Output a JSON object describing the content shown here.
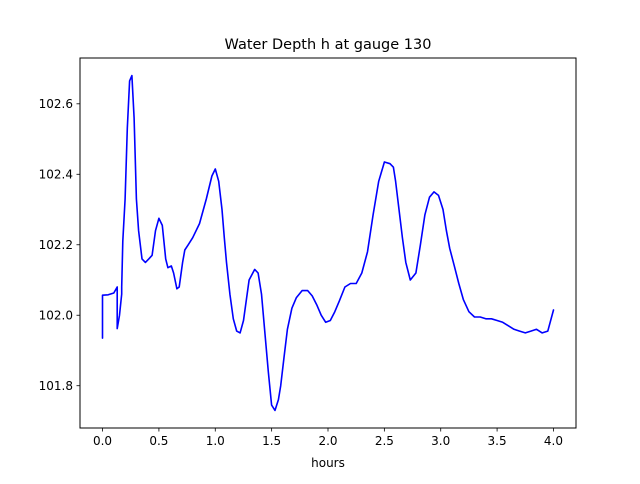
{
  "chart_data": {
    "type": "line",
    "title": "Water Depth h at gauge 130",
    "xlabel": "hours",
    "ylabel": "",
    "xlim": [
      -0.2,
      4.2
    ],
    "ylim": [
      101.68,
      102.73
    ],
    "x_ticks": [
      0.0,
      0.5,
      1.0,
      1.5,
      2.0,
      2.5,
      3.0,
      3.5,
      4.0
    ],
    "x_tick_labels": [
      "0.0",
      "0.5",
      "1.0",
      "1.5",
      "2.0",
      "2.5",
      "3.0",
      "3.5",
      "4.0"
    ],
    "y_ticks": [
      101.8,
      102.0,
      102.2,
      102.4,
      102.6
    ],
    "y_tick_labels": [
      "101.8",
      "102.0",
      "102.2",
      "102.4",
      "102.6"
    ],
    "grid": false,
    "legend": "none",
    "series": [
      {
        "color": "#0000ff",
        "x": [
          0.0,
          0.0,
          0.05,
          0.1,
          0.13,
          0.13,
          0.15,
          0.17,
          0.17,
          0.18,
          0.2,
          0.22,
          0.24,
          0.26,
          0.28,
          0.3,
          0.32,
          0.35,
          0.38,
          0.41,
          0.44,
          0.47,
          0.5,
          0.53,
          0.56,
          0.58,
          0.61,
          0.63,
          0.66,
          0.68,
          0.71,
          0.73,
          0.76,
          0.8,
          0.86,
          0.92,
          0.97,
          1.0,
          1.03,
          1.06,
          1.08,
          1.1,
          1.13,
          1.16,
          1.19,
          1.22,
          1.25,
          1.3,
          1.35,
          1.38,
          1.41,
          1.44,
          1.47,
          1.5,
          1.53,
          1.56,
          1.58,
          1.61,
          1.64,
          1.68,
          1.72,
          1.77,
          1.82,
          1.86,
          1.9,
          1.94,
          1.98,
          2.02,
          2.06,
          2.1,
          2.15,
          2.2,
          2.25,
          2.3,
          2.35,
          2.4,
          2.45,
          2.5,
          2.55,
          2.58,
          2.6,
          2.63,
          2.66,
          2.69,
          2.73,
          2.78,
          2.82,
          2.86,
          2.9,
          2.94,
          2.98,
          3.02,
          3.05,
          3.08,
          3.12,
          3.16,
          3.2,
          3.25,
          3.3,
          3.35,
          3.4,
          3.45,
          3.5,
          3.55,
          3.6,
          3.65,
          3.7,
          3.75,
          3.8,
          3.85,
          3.9,
          3.95,
          4.0
        ],
        "y": [
          101.935,
          102.057,
          102.058,
          102.063,
          102.08,
          101.962,
          102.0,
          102.06,
          102.08,
          102.21,
          102.33,
          102.53,
          102.665,
          102.68,
          102.56,
          102.33,
          102.24,
          102.16,
          102.15,
          102.16,
          102.17,
          102.24,
          102.275,
          102.255,
          102.16,
          102.135,
          102.14,
          102.12,
          102.075,
          102.08,
          102.15,
          102.185,
          102.2,
          102.22,
          102.26,
          102.33,
          102.395,
          102.415,
          102.38,
          102.3,
          102.22,
          102.15,
          102.06,
          101.99,
          101.955,
          101.95,
          101.985,
          102.1,
          102.13,
          102.12,
          102.06,
          101.95,
          101.84,
          101.745,
          101.73,
          101.76,
          101.8,
          101.88,
          101.96,
          102.02,
          102.05,
          102.07,
          102.07,
          102.055,
          102.03,
          102.0,
          101.98,
          101.985,
          102.01,
          102.04,
          102.08,
          102.09,
          102.09,
          102.12,
          102.18,
          102.285,
          102.38,
          102.435,
          102.43,
          102.42,
          102.38,
          102.3,
          102.22,
          102.15,
          102.1,
          102.12,
          102.2,
          102.285,
          102.335,
          102.35,
          102.34,
          102.3,
          102.24,
          102.19,
          102.14,
          102.09,
          102.045,
          102.01,
          101.995,
          101.995,
          101.99,
          101.99,
          101.985,
          101.98,
          101.97,
          101.96,
          101.955,
          101.95,
          101.955,
          101.96,
          101.95,
          101.955,
          102.015
        ]
      }
    ]
  }
}
